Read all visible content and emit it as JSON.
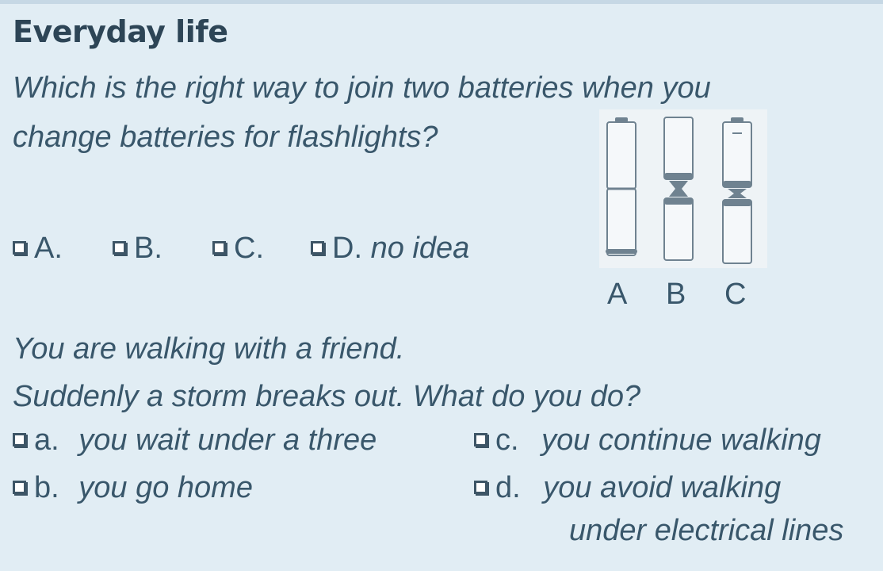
{
  "heading": "Everyday life",
  "question1": {
    "line1": "Which is the right way to join two batteries when you",
    "line2": "change batteries for flashlights?"
  },
  "options1": [
    {
      "letter": "A.",
      "text": ""
    },
    {
      "letter": "B.",
      "text": ""
    },
    {
      "letter": "C.",
      "text": ""
    },
    {
      "letter": "D.",
      "text": "no idea"
    }
  ],
  "battery_labels": [
    "A",
    "B",
    "C"
  ],
  "question2": {
    "line1": "You are walking with a friend.",
    "line2": "Suddenly a storm breaks out. What do you do?"
  },
  "answers": {
    "a": {
      "letter": "a.",
      "text": "you wait under a three"
    },
    "b": {
      "letter": "b.",
      "text": "you go home"
    },
    "c": {
      "letter": "c.",
      "text": "you continue walking"
    },
    "d": {
      "letter": "d.",
      "text_line1": "you avoid walking",
      "text_line2": "under electrical lines"
    }
  }
}
